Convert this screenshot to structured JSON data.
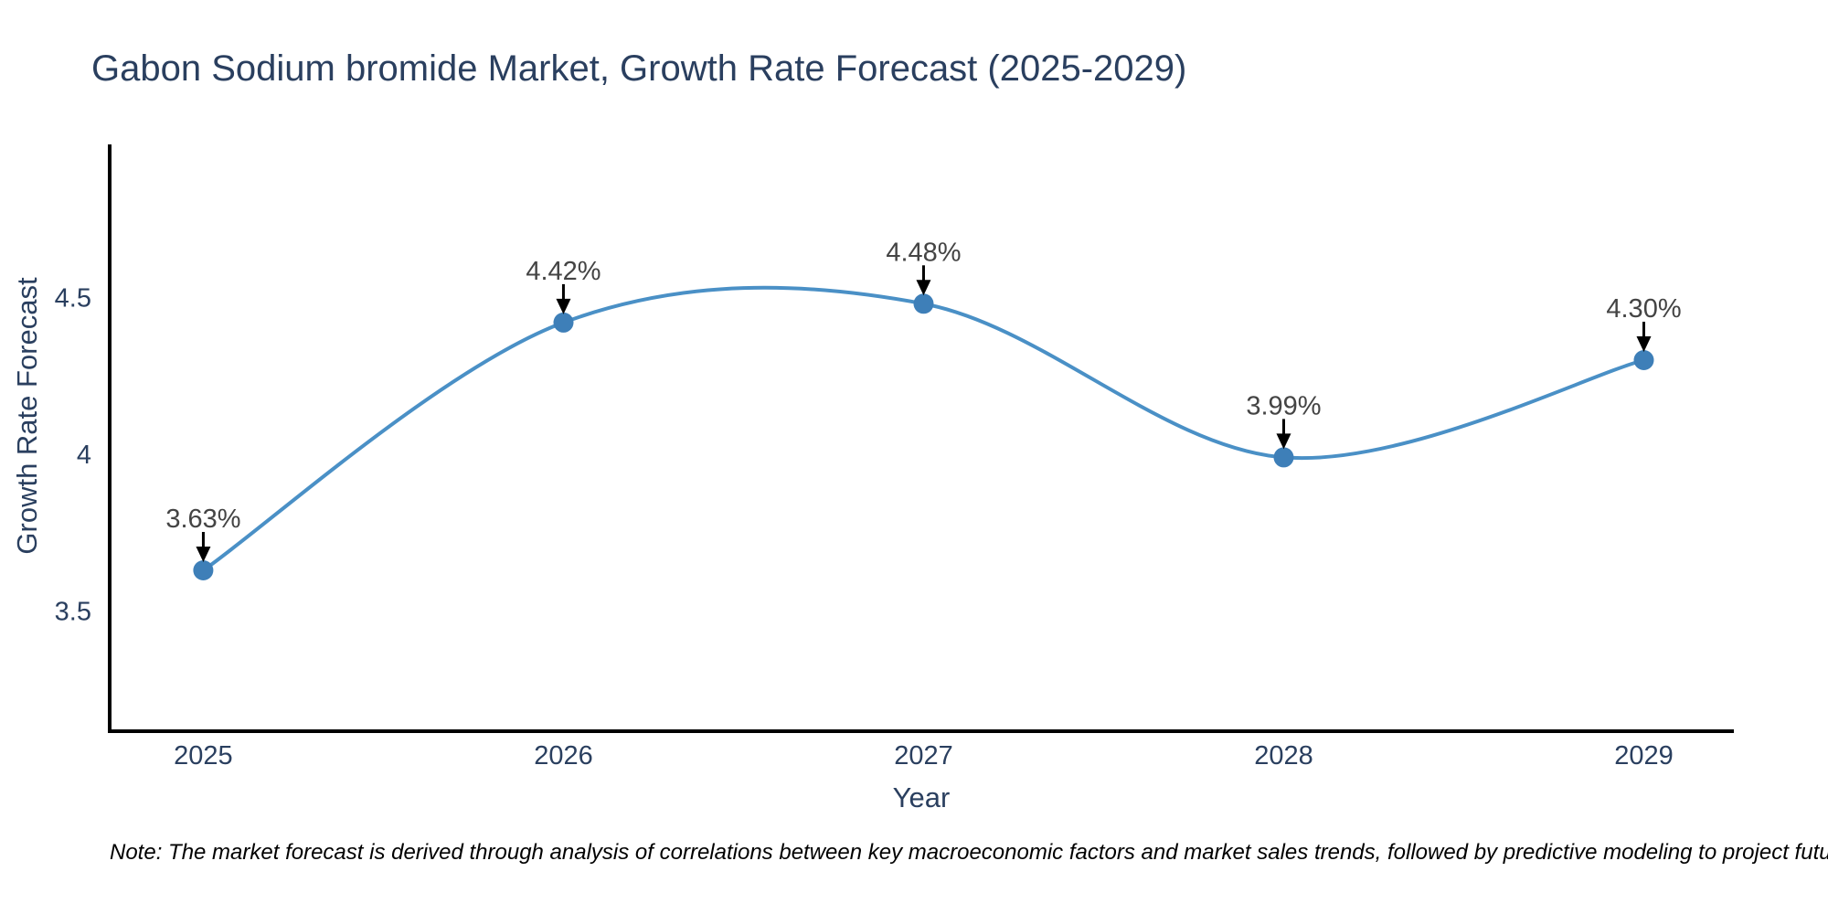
{
  "title": "Gabon Sodium bromide Market, Growth Rate Forecast (2025-2029)",
  "note": "Note: The market forecast is derived through analysis of correlations between key macroeconomic factors and market sales trends, followed by predictive modeling to project future sales",
  "chart_data": {
    "type": "line",
    "line_shape": "spline",
    "title": "Gabon Sodium bromide Market, Growth Rate Forecast (2025-2029)",
    "x": [
      2025,
      2026,
      2027,
      2028,
      2029
    ],
    "values": [
      3.63,
      4.42,
      4.48,
      3.99,
      4.3
    ],
    "point_labels": [
      "3.63%",
      "4.42%",
      "4.48%",
      "3.99%",
      "4.30%"
    ],
    "xlabel": "Year",
    "ylabel": "Growth Rate Forecast",
    "xticks": [
      2025,
      2026,
      2027,
      2028,
      2029
    ],
    "yticks": [
      3.5,
      4,
      4.5
    ],
    "xlim": [
      2024.74,
      2029.25
    ],
    "ylim": [
      3.117,
      4.982
    ],
    "grid": false,
    "legend": false,
    "markers": true,
    "annotation_arrows": true,
    "colors": {
      "line": "#4a90c6",
      "marker": "#3e7fb8",
      "axis": "#000000",
      "text": "#2a3f5f",
      "annotation_text": "#444444",
      "arrow": "#000000",
      "background": "#ffffff"
    }
  }
}
